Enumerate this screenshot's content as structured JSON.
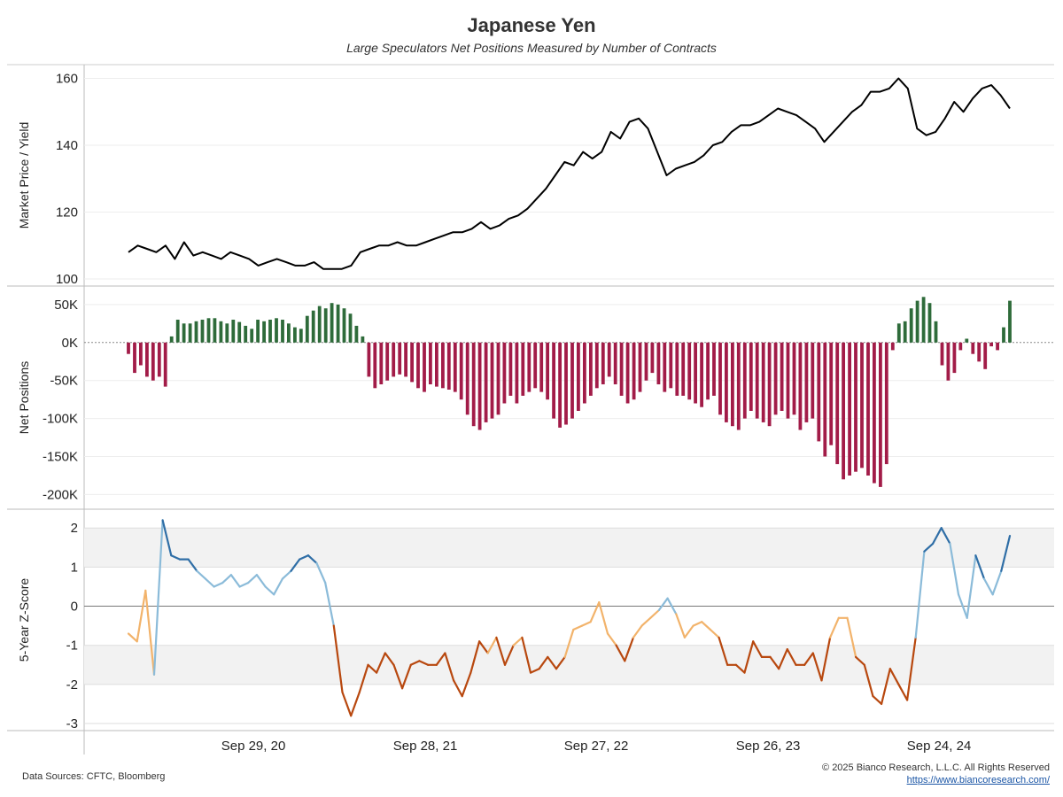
{
  "title": "Japanese Yen",
  "subtitle": "Large Speculators Net Positions Measured by Number of Contracts",
  "footer": {
    "sources": "Data Sources: CFTC, Bloomberg",
    "copyright": "© 2025 Bianco Research, L.L.C. All Rights Reserved",
    "url": "https://www.biancoresearch.com/"
  },
  "colors": {
    "price_line": "#000000",
    "positive_bar": "#2e6b3a",
    "negative_bar": "#a21c48",
    "z_high": "#2f6ea6",
    "z_mid_high": "#8bbbd9",
    "z_mid_low": "#f2b36b",
    "z_low": "#b8480f",
    "band": "#f2f2f2"
  },
  "chart_data": [
    {
      "type": "line",
      "ylabel": "Market Price / Yield",
      "ylim": [
        100,
        162
      ],
      "yticks": [
        100,
        120,
        140,
        160
      ],
      "x_start": "2020-01",
      "x_end": "2025-08",
      "series": [
        {
          "values": [
            108,
            110,
            109,
            108,
            110,
            106,
            111,
            107,
            108,
            107,
            106,
            108,
            107,
            106,
            104,
            105,
            106,
            105,
            104,
            104,
            105,
            103,
            103,
            103,
            104,
            108,
            109,
            110,
            110,
            111,
            110,
            110,
            111,
            112,
            113,
            114,
            114,
            115,
            117,
            115,
            116,
            118,
            119,
            121,
            124,
            127,
            131,
            135,
            134,
            138,
            136,
            138,
            144,
            142,
            147,
            148,
            145,
            138,
            131,
            133,
            134,
            135,
            137,
            140,
            141,
            144,
            146,
            146,
            147,
            149,
            151,
            150,
            149,
            147,
            145,
            141,
            144,
            147,
            150,
            152,
            156,
            156,
            157,
            160,
            157,
            145,
            143,
            144,
            148,
            153,
            150,
            154,
            157,
            158,
            155,
            151
          ]
        }
      ]
    },
    {
      "type": "bar",
      "ylabel": "Net Positions",
      "ylim": [
        -210000,
        65000
      ],
      "yticks": [
        50000,
        0,
        -50000,
        -100000,
        -150000,
        -200000
      ],
      "ytick_labels": [
        "50K",
        "0K",
        "-50K",
        "-100K",
        "-150K",
        "-200K"
      ],
      "x_start": "2020-01",
      "x_end": "2025-08",
      "values": [
        -15000,
        -40000,
        -30000,
        -45000,
        -50000,
        -45000,
        -58000,
        8000,
        30000,
        25000,
        25000,
        28000,
        30000,
        32000,
        32000,
        28000,
        25000,
        30000,
        27000,
        22000,
        18000,
        30000,
        28000,
        30000,
        32000,
        30000,
        25000,
        20000,
        18000,
        35000,
        42000,
        48000,
        45000,
        52000,
        50000,
        45000,
        38000,
        22000,
        8000,
        -45000,
        -60000,
        -55000,
        -50000,
        -45000,
        -42000,
        -45000,
        -52000,
        -60000,
        -65000,
        -55000,
        -58000,
        -60000,
        -62000,
        -65000,
        -75000,
        -95000,
        -110000,
        -115000,
        -105000,
        -100000,
        -95000,
        -80000,
        -70000,
        -80000,
        -70000,
        -65000,
        -60000,
        -65000,
        -75000,
        -100000,
        -112000,
        -108000,
        -100000,
        -90000,
        -80000,
        -70000,
        -60000,
        -55000,
        -45000,
        -55000,
        -70000,
        -80000,
        -75000,
        -65000,
        -50000,
        -40000,
        -55000,
        -65000,
        -60000,
        -70000,
        -70000,
        -75000,
        -80000,
        -85000,
        -75000,
        -70000,
        -95000,
        -105000,
        -110000,
        -115000,
        -100000,
        -90000,
        -100000,
        -105000,
        -110000,
        -95000,
        -90000,
        -100000,
        -95000,
        -115000,
        -105000,
        -100000,
        -130000,
        -150000,
        -135000,
        -160000,
        -180000,
        -175000,
        -170000,
        -165000,
        -175000,
        -185000,
        -190000,
        -160000,
        -10000,
        25000,
        28000,
        45000,
        55000,
        60000,
        52000,
        28000,
        -30000,
        -50000,
        -40000,
        -10000,
        5000,
        -15000,
        -25000,
        -35000,
        -5000,
        -10000,
        20000,
        55000
      ]
    },
    {
      "type": "line",
      "ylabel": "5-Year Z-Score",
      "ylim": [
        -3.0,
        2.3
      ],
      "yticks": [
        -3,
        -2,
        -1,
        0,
        1,
        2
      ],
      "bands": [
        [
          1,
          2
        ],
        [
          -2,
          -1
        ]
      ],
      "x_start": "2020-01",
      "x_end": "2025-08",
      "series": [
        {
          "values": [
            -0.7,
            -0.9,
            0.4,
            -1.75,
            2.2,
            1.3,
            1.2,
            1.2,
            0.9,
            0.7,
            0.5,
            0.6,
            0.8,
            0.5,
            0.6,
            0.8,
            0.5,
            0.3,
            0.7,
            0.9,
            1.2,
            1.3,
            1.1,
            0.6,
            -0.5,
            -2.2,
            -2.8,
            -2.2,
            -1.5,
            -1.7,
            -1.2,
            -1.5,
            -2.1,
            -1.5,
            -1.4,
            -1.5,
            -1.5,
            -1.2,
            -1.9,
            -2.3,
            -1.7,
            -0.9,
            -1.2,
            -0.8,
            -1.5,
            -1.0,
            -0.8,
            -1.7,
            -1.6,
            -1.3,
            -1.6,
            -1.3,
            -0.6,
            -0.5,
            -0.4,
            0.1,
            -0.7,
            -1.0,
            -1.4,
            -0.8,
            -0.5,
            -0.3,
            -0.1,
            0.2,
            -0.2,
            -0.8,
            -0.5,
            -0.4,
            -0.6,
            -0.8,
            -1.5,
            -1.5,
            -1.7,
            -0.9,
            -1.3,
            -1.3,
            -1.6,
            -1.1,
            -1.5,
            -1.5,
            -1.2,
            -1.9,
            -0.8,
            -0.3,
            -0.3,
            -1.3,
            -1.5,
            -2.3,
            -2.5,
            -1.6,
            -2.0,
            -2.4,
            -0.8,
            1.4,
            1.6,
            2.0,
            1.6,
            0.3,
            -0.3,
            1.3,
            0.7,
            0.3,
            0.9,
            1.8
          ]
        }
      ]
    }
  ],
  "x_ticks": [
    "Sep 29, 20",
    "Sep 28, 21",
    "Sep 27, 22",
    "Sep 26, 23",
    "Sep 24, 24"
  ]
}
